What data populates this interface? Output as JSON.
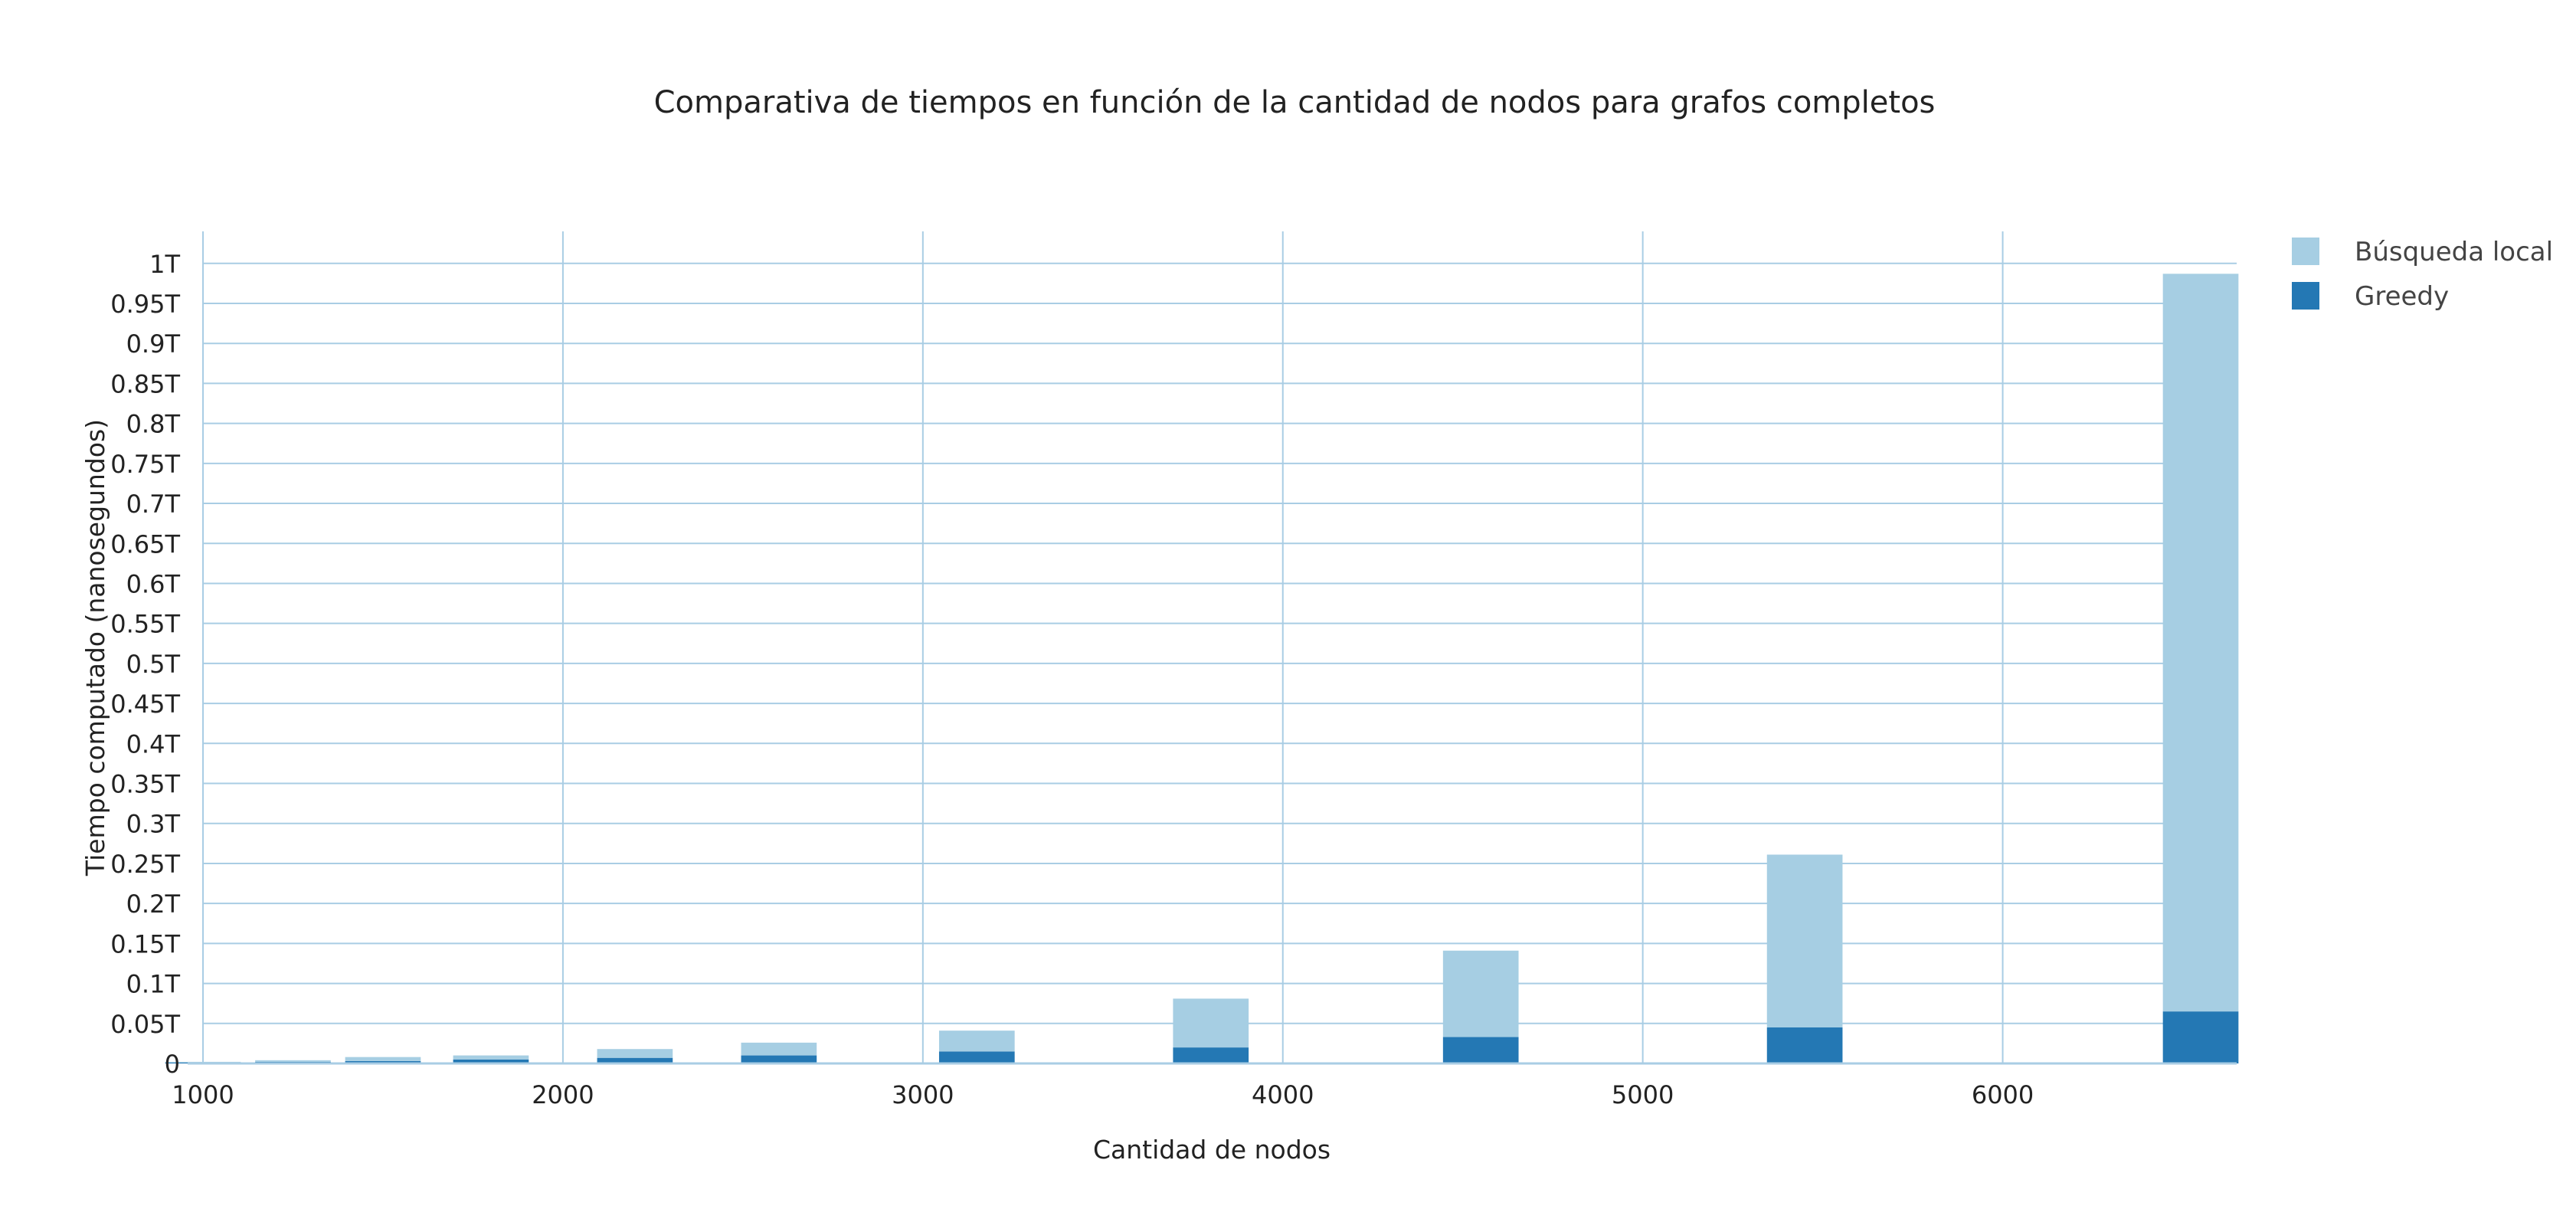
{
  "chart_data": {
    "type": "bar",
    "barmode": "stack",
    "title": "Comparativa de tiempos en función de la cantidad de nodos para grafos completos",
    "xlabel": "Cantidad de nodos",
    "ylabel": "Tiempo computado (nanosegundos)",
    "xlim": [
      1000,
      6650
    ],
    "ylim": [
      0,
      1.04
    ],
    "x_ticks": [
      1000,
      2000,
      3000,
      4000,
      5000,
      6000
    ],
    "x_tick_labels": [
      "1000",
      "2000",
      "3000",
      "4000",
      "5000",
      "6000"
    ],
    "y_ticks": [
      0,
      0.05,
      0.1,
      0.15,
      0.2,
      0.25,
      0.3,
      0.35,
      0.4,
      0.45,
      0.5,
      0.55,
      0.6,
      0.65,
      0.7,
      0.75,
      0.8,
      0.85,
      0.9,
      0.95,
      1
    ],
    "y_tick_labels": [
      "0",
      "0.05T",
      "0.1T",
      "0.15T",
      "0.2T",
      "0.25T",
      "0.3T",
      "0.35T",
      "0.4T",
      "0.45T",
      "0.5T",
      "0.55T",
      "0.6T",
      "0.65T",
      "0.7T",
      "0.75T",
      "0.8T",
      "0.85T",
      "0.9T",
      "0.95T",
      "1T"
    ],
    "grid": true,
    "legend_position": "top-right",
    "x": [
      1000,
      1250,
      1500,
      1800,
      2200,
      2600,
      3150,
      3800,
      4550,
      5450,
      6550
    ],
    "bar_width_data": 210,
    "series": [
      {
        "name": "Greedy",
        "color": "#2478b4",
        "values": [
          0.001,
          0.002,
          0.003,
          0.005,
          0.007,
          0.01,
          0.015,
          0.02,
          0.033,
          0.045,
          0.065
        ]
      },
      {
        "name": "Búsqueda local",
        "color": "#a6cee3",
        "values": [
          0.001,
          0.002,
          0.005,
          0.005,
          0.011,
          0.016,
          0.026,
          0.061,
          0.108,
          0.216,
          0.922
        ]
      }
    ],
    "legend_order": [
      "Búsqueda local",
      "Greedy"
    ]
  }
}
